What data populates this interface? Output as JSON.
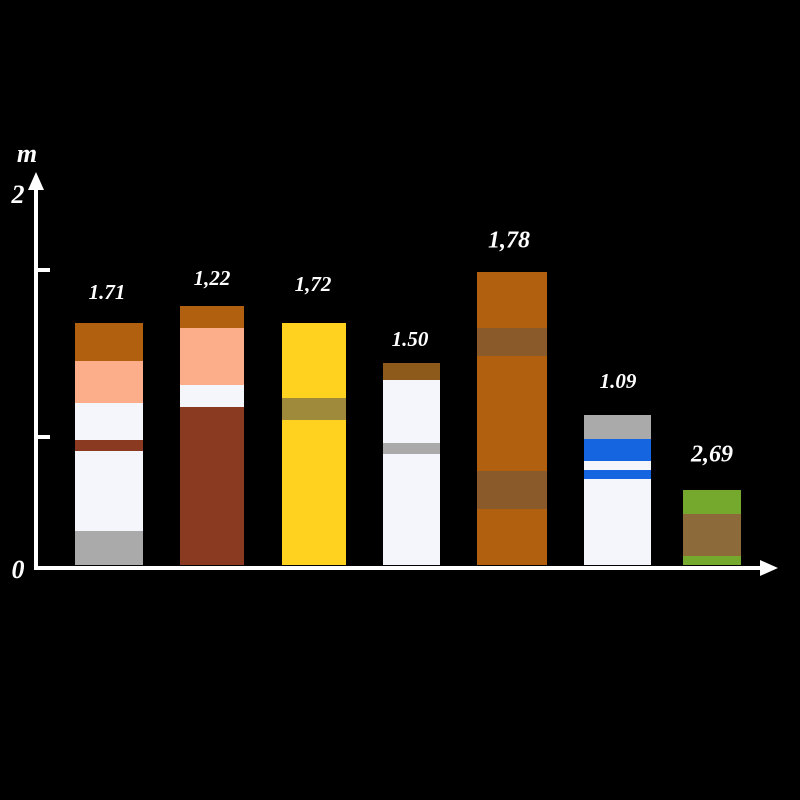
{
  "axis": {
    "unit": "m",
    "top_label": "2",
    "origin_label": "0"
  },
  "bar_labels": [
    "1.71",
    "1,22",
    "1,72",
    "1.50",
    "1,78",
    "1.09",
    "2,69"
  ]
}
